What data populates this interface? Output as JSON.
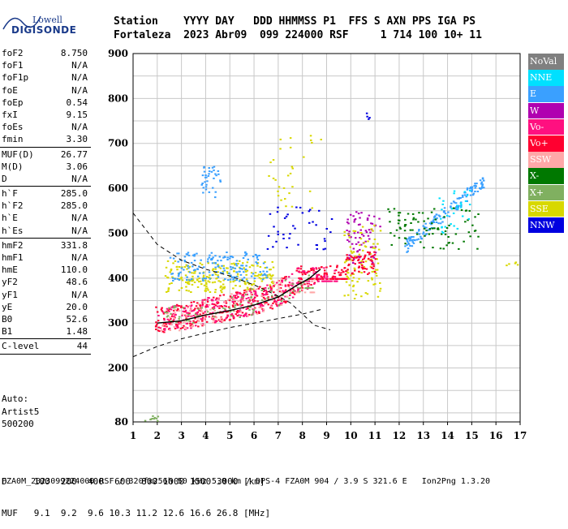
{
  "logo": {
    "line1": "Lowell",
    "line2": "DIGISONDE"
  },
  "header": {
    "columns": "Station    YYYY DAY   DDD HHMMSS P1  FFS S AXN PPS IGA PS",
    "values": "Fortaleza  2023 Abr09  099 224000 RSF     1 714 100 10+ 11"
  },
  "params": [
    {
      "k": "foF2",
      "v": "8.750"
    },
    {
      "k": "foF1",
      "v": "N/A"
    },
    {
      "k": "foF1p",
      "v": "N/A"
    },
    {
      "k": "foE",
      "v": "N/A"
    },
    {
      "k": "foEp",
      "v": "0.54"
    },
    {
      "k": "fxI",
      "v": "9.15"
    },
    {
      "k": "foEs",
      "v": "N/A"
    },
    {
      "k": "fmin",
      "v": "3.30",
      "sep": true
    },
    {
      "k": "MUF(D)",
      "v": "26.77"
    },
    {
      "k": "M(D)",
      "v": "3.06"
    },
    {
      "k": "D",
      "v": "N/A",
      "sep": true
    },
    {
      "k": "h`F",
      "v": "285.0"
    },
    {
      "k": "h`F2",
      "v": "285.0"
    },
    {
      "k": "h`E",
      "v": "N/A"
    },
    {
      "k": "h`Es",
      "v": "N/A",
      "sep": true
    },
    {
      "k": "hmF2",
      "v": "331.8"
    },
    {
      "k": "hmF1",
      "v": "N/A"
    },
    {
      "k": "hmE",
      "v": "110.0"
    },
    {
      "k": "yF2",
      "v": "48.6"
    },
    {
      "k": "yF1",
      "v": "N/A"
    },
    {
      "k": "yE",
      "v": "20.0"
    },
    {
      "k": "B0",
      "v": "52.6"
    },
    {
      "k": "B1",
      "v": "1.48",
      "sep": true
    },
    {
      "k": "C-level",
      "v": "44",
      "sep": true
    }
  ],
  "auto": {
    "l1": "Auto:",
    "l2": "Artist5",
    "l3": "500200"
  },
  "bottom": {
    "d_row": "D     100  200  400  600  800 1000 1500 3000 [km]",
    "muf_row": "MUF   9.1  9.2  9.6 10.3 11.2 12.6 16.6 26.8 [MHz]"
  },
  "footer": "FZA0M_2023099224000.RSF / 320fx256h 50 kHz 5.0 km / DPS-4 FZA0M 904 / 3.9 S 321.6 E   Ion2Png 1.3.20",
  "legend": [
    {
      "label": "NoVal",
      "color": "#808080"
    },
    {
      "label": "NNE",
      "color": "#00e0ff"
    },
    {
      "label": "E",
      "color": "#3aa0ff"
    },
    {
      "label": "W",
      "color": "#b000b0"
    },
    {
      "label": "Vo-",
      "color": "#ff1080"
    },
    {
      "label": "Vo+",
      "color": "#ff0030"
    },
    {
      "label": "SSW",
      "color": "#ffa8a8"
    },
    {
      "label": "X-",
      "color": "#007800"
    },
    {
      "label": "X+",
      "color": "#80b060"
    },
    {
      "label": "SSE",
      "color": "#d8d800"
    },
    {
      "label": "NNW",
      "color": "#0000e0"
    }
  ],
  "chart_data": {
    "type": "scatter",
    "title": "",
    "xlabel": "",
    "ylabel": "",
    "xlim": [
      1,
      17
    ],
    "ylim": [
      80,
      900
    ],
    "x_ticks": [
      1,
      2,
      3,
      4,
      5,
      6,
      7,
      8,
      9,
      10,
      11,
      12,
      13,
      14,
      15,
      16,
      17
    ],
    "y_ticks": [
      80,
      200,
      300,
      400,
      500,
      600,
      700,
      800,
      900
    ],
    "grid": true,
    "legend_position": "right",
    "clusters": [
      {
        "series": "SSE",
        "color": "#d8d800",
        "x": [
          2.3,
          6.8
        ],
        "y": [
          370,
          440
        ],
        "n": 220
      },
      {
        "series": "E",
        "color": "#3aa0ff",
        "x": [
          2.5,
          6.5
        ],
        "y": [
          395,
          460
        ],
        "n": 160
      },
      {
        "series": "Vo+",
        "color": "#ff0030",
        "x": [
          1.9,
          9.8
        ],
        "y": [
          280,
          400
        ],
        "n": 420,
        "trend": true
      },
      {
        "series": "Vo-",
        "color": "#ff1080",
        "x": [
          2.0,
          9.5
        ],
        "y": [
          285,
          395
        ],
        "n": 260,
        "trend": true
      },
      {
        "series": "SSW",
        "color": "#ffa8a8",
        "x": [
          2.0,
          8.5
        ],
        "y": [
          285,
          370
        ],
        "n": 130,
        "trend": true
      },
      {
        "series": "X+",
        "color": "#80b060",
        "x": [
          2.2,
          8.5
        ],
        "y": [
          300,
          380
        ],
        "n": 90,
        "trend": true
      },
      {
        "series": "E",
        "color": "#3aa0ff",
        "x": [
          3.8,
          4.6
        ],
        "y": [
          580,
          650
        ],
        "n": 35
      },
      {
        "series": "E",
        "color": "#3aa0ff",
        "x": [
          12.2,
          15.5
        ],
        "y": [
          470,
          620
        ],
        "n": 140,
        "trend2": true
      },
      {
        "series": "X-",
        "color": "#007800",
        "x": [
          11.5,
          15.4
        ],
        "y": [
          465,
          560
        ],
        "n": 90
      },
      {
        "series": "W",
        "color": "#b000b0",
        "x": [
          9.8,
          11.2
        ],
        "y": [
          430,
          550
        ],
        "n": 80
      },
      {
        "series": "SSE",
        "color": "#d8d800",
        "x": [
          9.7,
          11.2
        ],
        "y": [
          350,
          520
        ],
        "n": 90
      },
      {
        "series": "NNW",
        "color": "#0000e0",
        "x": [
          6.5,
          9.2
        ],
        "y": [
          460,
          560
        ],
        "n": 40
      },
      {
        "series": "NNE",
        "color": "#00e0ff",
        "x": [
          13.6,
          15.0
        ],
        "y": [
          500,
          600
        ],
        "n": 30
      },
      {
        "series": "SSE",
        "color": "#d8d800",
        "x": [
          6.4,
          8.8
        ],
        "y": [
          550,
          720
        ],
        "n": 30
      },
      {
        "series": "Vo+",
        "color": "#ff0030",
        "x": [
          9.7,
          11.0
        ],
        "y": [
          410,
          460
        ],
        "n": 60
      },
      {
        "series": "X+",
        "color": "#80b060",
        "x": [
          1.4,
          2.0
        ],
        "y": [
          80,
          95
        ],
        "n": 12
      },
      {
        "series": "NNW",
        "color": "#0000e0",
        "x": [
          10.6,
          10.8
        ],
        "y": [
          750,
          770
        ],
        "n": 4
      },
      {
        "series": "SSE",
        "color": "#d8d800",
        "x": [
          16.4,
          16.9
        ],
        "y": [
          430,
          445
        ],
        "n": 5
      }
    ],
    "trace_curve": {
      "x": [
        2.0,
        3.0,
        4.0,
        5.0,
        6.0,
        7.0,
        7.8,
        8.3,
        8.75
      ],
      "y": [
        300,
        305,
        318,
        328,
        340,
        358,
        385,
        400,
        420
      ]
    },
    "profile_curve": {
      "x": [
        1.0,
        2.0,
        3.0,
        4.0,
        5.0,
        6.0,
        7.0,
        7.5,
        8.0,
        8.5,
        9.15
      ],
      "y": [
        545,
        475,
        440,
        420,
        405,
        385,
        360,
        345,
        320,
        295,
        285
      ]
    },
    "lower_curve": {
      "x": [
        1.0,
        2.0,
        3.0,
        4.0,
        5.0,
        6.0,
        7.0,
        8.0,
        8.75
      ],
      "y": [
        225,
        248,
        265,
        278,
        290,
        300,
        310,
        320,
        330
      ]
    }
  }
}
